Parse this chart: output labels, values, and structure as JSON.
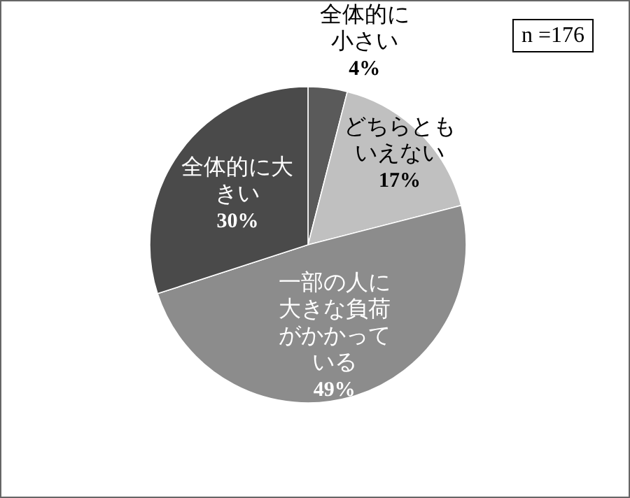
{
  "chart_data": {
    "type": "pie",
    "categories": [
      "全体的に小さい",
      "どちらともいえない",
      "一部の人に大きな負荷がかかっている",
      "全体的に大きい"
    ],
    "values": [
      4,
      17,
      49,
      30
    ],
    "value_labels": [
      "4%",
      "17%",
      "49%",
      "30%"
    ],
    "colors": [
      "#5a5a5a",
      "#c0c0c0",
      "#8c8c8c",
      "#4a4a4a"
    ],
    "annotations": [
      "n =176"
    ]
  }
}
